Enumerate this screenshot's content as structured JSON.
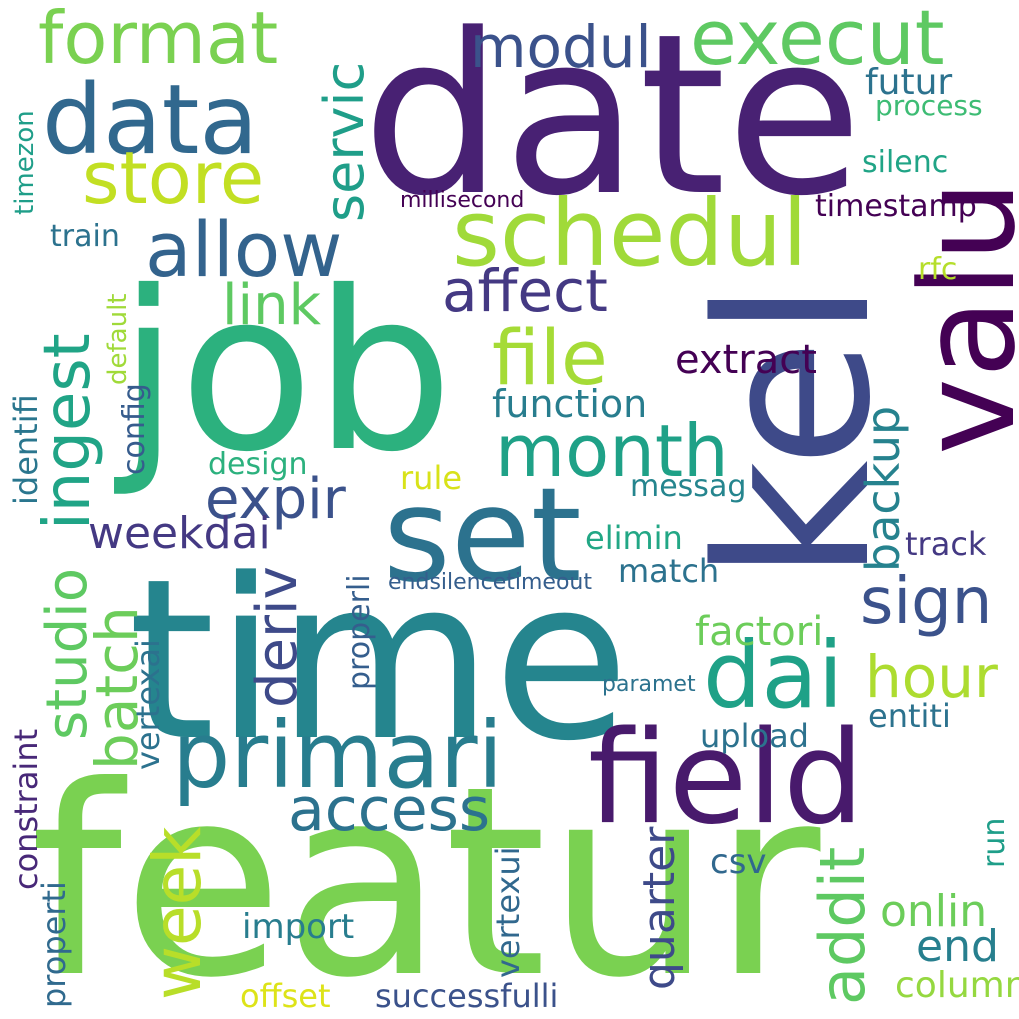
{
  "wordcloud": {
    "background": "#ffffff",
    "words": {
      "featur": "featur",
      "date": "date",
      "job": "job",
      "time": "time",
      "kel": "kel",
      "valu": "valu",
      "set": "set",
      "field": "field",
      "primari": "primari",
      "schedul": "schedul",
      "data": "data",
      "format": "format",
      "execut": "execut",
      "modul": "modul",
      "store": "store",
      "allow": "allow",
      "affect": "affect",
      "file": "file",
      "link": "link",
      "ingest": "ingest",
      "servic": "servic",
      "month": "month",
      "extract": "extract",
      "function": "function",
      "expir": "expir",
      "backup": "backup",
      "studio": "studio",
      "batch": "batch",
      "deriv": "deriv",
      "weekdai": "weekdai",
      "dai": "dai",
      "sign": "sign",
      "hour": "hour",
      "access": "access",
      "week": "week",
      "addit": "addit",
      "onlin": "onlin",
      "end": "end",
      "column": "column",
      "quarter": "quarter",
      "csv": "csv",
      "import": "import",
      "offset": "offset",
      "successfulli": "successfulli",
      "vertexui": "vertexui",
      "properti": "properti",
      "constraint": "constraint",
      "vertexai": "vertexai",
      "properli": "properli",
      "config": "config",
      "identifi": "identifi",
      "default": "default",
      "train": "train",
      "timezon": "timezon",
      "millisecond": "millisecond",
      "futur": "futur",
      "process": "process",
      "silenc": "silenc",
      "timestamp": "timestamp",
      "rfc": "rfc",
      "design": "design",
      "rule": "rule",
      "messag": "messag",
      "elimin": "elimin",
      "track": "track",
      "match": "match",
      "endsilencetimeout": "endsilencetimeout",
      "factori": "factori",
      "paramet": "paramet",
      "entiti": "entiti",
      "upload": "upload",
      "run": "run"
    }
  }
}
